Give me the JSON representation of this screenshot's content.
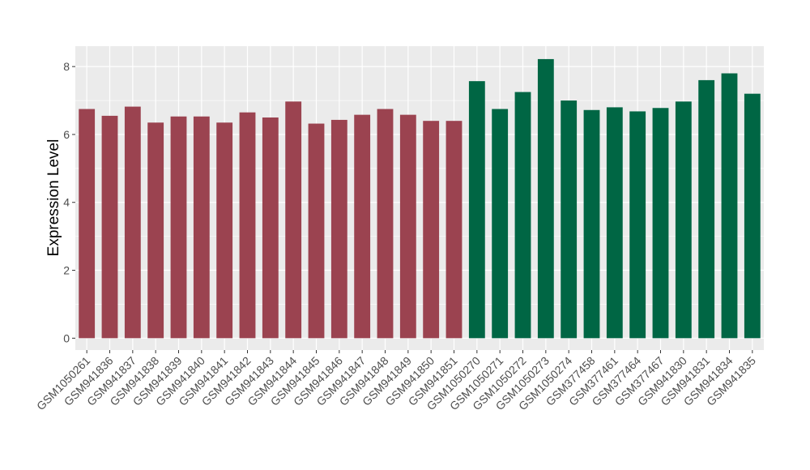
{
  "chart_data": {
    "type": "bar",
    "ylabel": "Expression Level",
    "xlabel": "",
    "ylim": [
      -0.35,
      8.6
    ],
    "yticks": [
      0,
      2,
      4,
      6,
      8
    ],
    "grid": true,
    "colors": {
      "group1": "#9b4350",
      "group2": "#006644",
      "panel": "#ebebeb",
      "grid": "#ffffff"
    },
    "categories": [
      "GSM1050261",
      "GSM941836",
      "GSM941837",
      "GSM941838",
      "GSM941839",
      "GSM941840",
      "GSM941841",
      "GSM941842",
      "GSM941843",
      "GSM941844",
      "GSM941845",
      "GSM941846",
      "GSM941847",
      "GSM941848",
      "GSM941849",
      "GSM941850",
      "GSM941851",
      "GSM1050270",
      "GSM1050271",
      "GSM1050272",
      "GSM1050273",
      "GSM1050274",
      "GSM377458",
      "GSM377461",
      "GSM377464",
      "GSM377467",
      "GSM941830",
      "GSM941831",
      "GSM941834",
      "GSM941835"
    ],
    "values": [
      6.75,
      6.55,
      6.82,
      6.35,
      6.53,
      6.53,
      6.35,
      6.65,
      6.5,
      6.97,
      6.32,
      6.43,
      6.58,
      6.75,
      6.58,
      6.4,
      6.4,
      7.57,
      6.75,
      7.25,
      8.22,
      7.0,
      6.72,
      6.8,
      6.68,
      6.78,
      6.97,
      7.6,
      7.8,
      7.2
    ],
    "groups": [
      1,
      1,
      1,
      1,
      1,
      1,
      1,
      1,
      1,
      1,
      1,
      1,
      1,
      1,
      1,
      1,
      1,
      2,
      2,
      2,
      2,
      2,
      2,
      2,
      2,
      2,
      2,
      2,
      2,
      2
    ]
  }
}
